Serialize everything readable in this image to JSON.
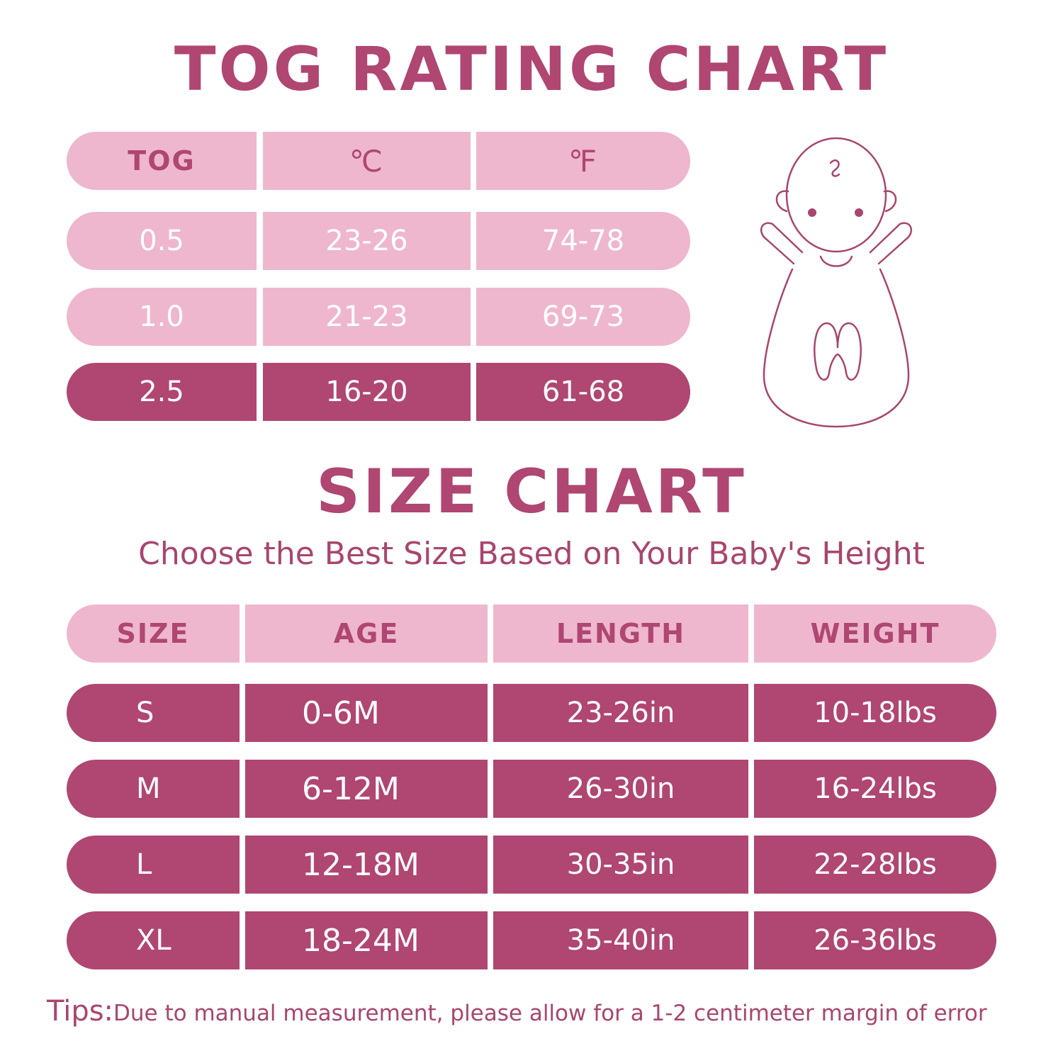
{
  "tog_chart": {
    "title": "TOG RATING CHART",
    "headers": [
      "TOG",
      "℃",
      "℉"
    ],
    "rows": [
      {
        "tog": "0.5",
        "celsius": "23-26",
        "fahrenheit": "74-78"
      },
      {
        "tog": "1.0",
        "celsius": "21-23",
        "fahrenheit": "69-73"
      },
      {
        "tog": "2.5",
        "celsius": "16-20",
        "fahrenheit": "61-68"
      }
    ],
    "highlighted_row": "2.5"
  },
  "size_chart": {
    "title": "SIZE CHART",
    "subtitle": "Choose the Best Size Based on Your Baby's Height",
    "headers": [
      "SIZE",
      "AGE",
      "LENGTH",
      "WEIGHT"
    ],
    "rows": [
      {
        "size": "S",
        "age": "0-6M",
        "length": "23-26in",
        "weight": "10-18lbs"
      },
      {
        "size": "M",
        "age": "6-12M",
        "length": "26-30in",
        "weight": "16-24lbs"
      },
      {
        "size": "L",
        "age": "12-18M",
        "length": "30-35in",
        "weight": "22-28lbs"
      },
      {
        "size": "XL",
        "age": "18-24M",
        "length": "35-40in",
        "weight": "26-36lbs"
      }
    ]
  },
  "tips": {
    "label": "Tips:",
    "text": "Due to manual measurement, please allow for a 1-2 centimeter margin of error"
  },
  "illustration": {
    "icon": "baby-sleep-sack-icon"
  },
  "colors": {
    "primary": "#b04672",
    "light": "#eeb7ce",
    "background": "#ffffff"
  }
}
